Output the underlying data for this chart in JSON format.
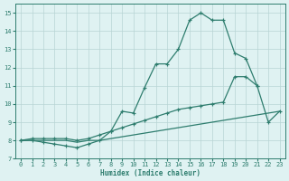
{
  "xlabel": "Humidex (Indice chaleur)",
  "x_all": [
    0,
    1,
    2,
    3,
    4,
    5,
    6,
    7,
    8,
    9,
    10,
    11,
    12,
    13,
    14,
    15,
    16,
    17,
    18,
    19,
    20,
    21,
    22,
    23
  ],
  "curve_main": [
    8.0,
    8.0,
    7.9,
    7.8,
    7.7,
    7.6,
    7.8,
    8.0,
    8.5,
    9.6,
    9.5,
    10.9,
    12.2,
    12.2,
    13.0,
    14.6,
    15.0,
    14.6,
    14.6,
    12.8,
    12.5,
    11.0,
    null,
    null
  ],
  "curve_mid": [
    8.0,
    8.1,
    8.1,
    8.1,
    8.1,
    8.0,
    8.1,
    8.3,
    8.5,
    8.7,
    8.9,
    9.1,
    9.3,
    9.5,
    9.7,
    9.8,
    9.9,
    10.0,
    10.1,
    11.5,
    11.5,
    11.0,
    9.0,
    9.6
  ],
  "curve_low": [
    8.0,
    8.0,
    8.0,
    8.0,
    8.0,
    7.9,
    8.0,
    8.0,
    8.1,
    8.2,
    8.3,
    8.4,
    8.5,
    8.6,
    8.7,
    8.8,
    8.9,
    9.0,
    9.1,
    9.2,
    9.3,
    9.4,
    9.5,
    9.6
  ],
  "ylim": [
    7.0,
    15.5
  ],
  "xlim": [
    -0.5,
    23.5
  ],
  "yticks": [
    7,
    8,
    9,
    10,
    11,
    12,
    13,
    14,
    15
  ],
  "xticks": [
    0,
    1,
    2,
    3,
    4,
    5,
    6,
    7,
    8,
    9,
    10,
    11,
    12,
    13,
    14,
    15,
    16,
    17,
    18,
    19,
    20,
    21,
    22,
    23
  ],
  "line_color": "#2e7d6e",
  "bg_color": "#dff2f2",
  "grid_color": "#b8d4d4"
}
